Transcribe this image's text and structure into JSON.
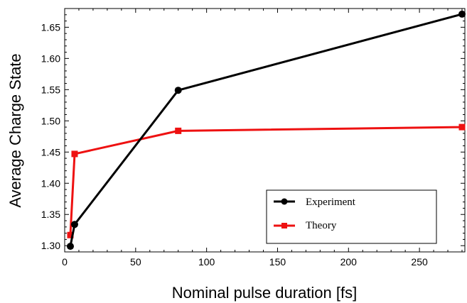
{
  "chart_data": {
    "type": "line",
    "title": "",
    "xlabel": "Nominal pulse duration [fs]",
    "ylabel": "Average Charge State",
    "xlim": [
      0,
      282
    ],
    "ylim": [
      1.29,
      1.68
    ],
    "x_ticks": [
      0,
      50,
      100,
      150,
      200,
      250
    ],
    "x_tick_labels": [
      "0",
      "50",
      "100",
      "150",
      "200",
      "250"
    ],
    "y_ticks": [
      1.3,
      1.35,
      1.4,
      1.45,
      1.5,
      1.55,
      1.6,
      1.65
    ],
    "y_tick_labels": [
      "1.30",
      "1.35",
      "1.40",
      "1.45",
      "1.50",
      "1.55",
      "1.60",
      "1.65"
    ],
    "grid": false,
    "legend_position": "bottom-right",
    "series": [
      {
        "name": "Experiment",
        "color": "#000000",
        "marker": "circle",
        "x": [
          4,
          7,
          80,
          280
        ],
        "y": [
          1.299,
          1.334,
          1.549,
          1.671
        ]
      },
      {
        "name": "Theory",
        "color": "#ee1111",
        "marker": "square",
        "x": [
          4,
          7,
          80,
          280
        ],
        "y": [
          1.317,
          1.447,
          1.484,
          1.49
        ]
      }
    ]
  }
}
